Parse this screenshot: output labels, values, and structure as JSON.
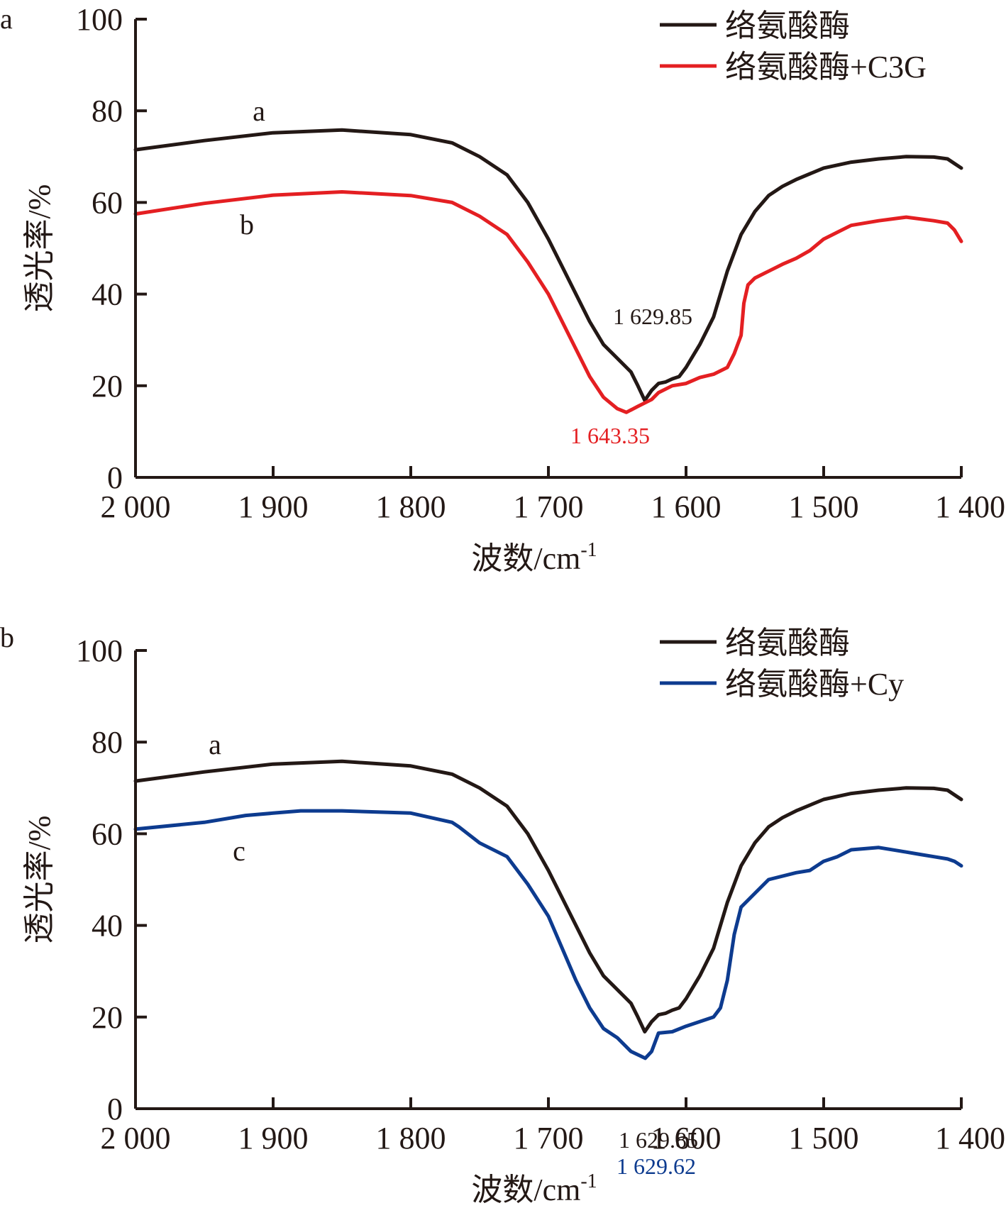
{
  "chart_data": [
    {
      "panel": "a",
      "type": "line",
      "xlabel": "波数/cm",
      "xlabel_sup": "-1",
      "ylabel": "透光率/%",
      "xlim": [
        2000,
        1400
      ],
      "ylim": [
        0,
        100
      ],
      "x_ticks": [
        2000,
        1900,
        1800,
        1700,
        1600,
        1500,
        1400
      ],
      "x_tick_labels": [
        "2 000",
        "1 900",
        "1 800",
        "1 700",
        "1 600",
        "1 500",
        "1 400"
      ],
      "y_ticks": [
        0,
        20,
        40,
        60,
        80,
        100
      ],
      "y_tick_labels": [
        "0",
        "20",
        "40",
        "60",
        "80",
        "100"
      ],
      "legend_position": "top-right",
      "series": [
        {
          "name": "络氨酸酶",
          "curve_label": "a",
          "color": "#231815",
          "points": [
            [
              2000,
              71.5
            ],
            [
              1950,
              73.5
            ],
            [
              1900,
              75.2
            ],
            [
              1850,
              75.8
            ],
            [
              1800,
              74.8
            ],
            [
              1770,
              73
            ],
            [
              1750,
              70
            ],
            [
              1730,
              66
            ],
            [
              1715,
              60
            ],
            [
              1700,
              52
            ],
            [
              1685,
              43
            ],
            [
              1670,
              34
            ],
            [
              1660,
              29
            ],
            [
              1650,
              26
            ],
            [
              1640,
              23
            ],
            [
              1635,
              20
            ],
            [
              1630,
              16.8
            ],
            [
              1625,
              19
            ],
            [
              1620,
              20.5
            ],
            [
              1615,
              20.8
            ],
            [
              1610,
              21.5
            ],
            [
              1605,
              22
            ],
            [
              1600,
              24
            ],
            [
              1595,
              26.5
            ],
            [
              1590,
              29
            ],
            [
              1580,
              35
            ],
            [
              1570,
              45
            ],
            [
              1560,
              53
            ],
            [
              1550,
              58
            ],
            [
              1540,
              61.5
            ],
            [
              1530,
              63.5
            ],
            [
              1520,
              65
            ],
            [
              1500,
              67.5
            ],
            [
              1480,
              68.8
            ],
            [
              1460,
              69.5
            ],
            [
              1440,
              70
            ],
            [
              1420,
              69.9
            ],
            [
              1410,
              69.5
            ],
            [
              1405,
              68.5
            ],
            [
              1400,
              67.5
            ]
          ],
          "peak_label": "1 629.85"
        },
        {
          "name": "络氨酸酶+C3G",
          "curve_label": "b",
          "color": "#e41f22",
          "points": [
            [
              2000,
              57.5
            ],
            [
              1950,
              59.8
            ],
            [
              1900,
              61.6
            ],
            [
              1850,
              62.3
            ],
            [
              1800,
              61.5
            ],
            [
              1770,
              60
            ],
            [
              1750,
              57
            ],
            [
              1730,
              53
            ],
            [
              1715,
              47
            ],
            [
              1700,
              40
            ],
            [
              1690,
              34
            ],
            [
              1680,
              28
            ],
            [
              1670,
              22
            ],
            [
              1660,
              17.5
            ],
            [
              1650,
              15
            ],
            [
              1643.35,
              14.2
            ],
            [
              1635,
              15.5
            ],
            [
              1625,
              17
            ],
            [
              1620,
              18.5
            ],
            [
              1610,
              20
            ],
            [
              1600,
              20.5
            ],
            [
              1590,
              21.8
            ],
            [
              1580,
              22.5
            ],
            [
              1570,
              24
            ],
            [
              1565,
              27
            ],
            [
              1560,
              31
            ],
            [
              1558,
              38
            ],
            [
              1555,
              42
            ],
            [
              1550,
              43.5
            ],
            [
              1540,
              45
            ],
            [
              1530,
              46.5
            ],
            [
              1520,
              47.8
            ],
            [
              1510,
              49.5
            ],
            [
              1500,
              52
            ],
            [
              1490,
              53.5
            ],
            [
              1480,
              55
            ],
            [
              1460,
              56
            ],
            [
              1440,
              56.8
            ],
            [
              1420,
              56
            ],
            [
              1410,
              55.5
            ],
            [
              1405,
              54
            ],
            [
              1400,
              51.5
            ]
          ],
          "peak_label": "1 643.35"
        }
      ]
    },
    {
      "panel": "b",
      "type": "line",
      "xlabel": "波数/cm",
      "xlabel_sup": "-1",
      "ylabel": "透光率/%",
      "xlim": [
        2000,
        1400
      ],
      "ylim": [
        0,
        100
      ],
      "x_ticks": [
        2000,
        1900,
        1800,
        1700,
        1600,
        1500,
        1400
      ],
      "x_tick_labels": [
        "2 000",
        "1 900",
        "1 800",
        "1 700",
        "1 600",
        "1 500",
        "1 400"
      ],
      "y_ticks": [
        0,
        20,
        40,
        60,
        80,
        100
      ],
      "y_tick_labels": [
        "0",
        "20",
        "40",
        "60",
        "80",
        "100"
      ],
      "legend_position": "top-right",
      "series": [
        {
          "name": "络氨酸酶",
          "curve_label": "a",
          "color": "#231815",
          "points": [
            [
              2000,
              71.5
            ],
            [
              1950,
              73.5
            ],
            [
              1900,
              75.2
            ],
            [
              1850,
              75.8
            ],
            [
              1800,
              74.8
            ],
            [
              1770,
              73
            ],
            [
              1750,
              70
            ],
            [
              1730,
              66
            ],
            [
              1715,
              60
            ],
            [
              1700,
              52
            ],
            [
              1685,
              43
            ],
            [
              1670,
              34
            ],
            [
              1660,
              29
            ],
            [
              1650,
              26
            ],
            [
              1640,
              23
            ],
            [
              1635,
              20
            ],
            [
              1630,
              16.8
            ],
            [
              1625,
              19
            ],
            [
              1620,
              20.5
            ],
            [
              1615,
              20.8
            ],
            [
              1610,
              21.5
            ],
            [
              1605,
              22
            ],
            [
              1600,
              24
            ],
            [
              1595,
              26.5
            ],
            [
              1590,
              29
            ],
            [
              1580,
              35
            ],
            [
              1570,
              45
            ],
            [
              1560,
              53
            ],
            [
              1550,
              58
            ],
            [
              1540,
              61.5
            ],
            [
              1530,
              63.5
            ],
            [
              1520,
              65
            ],
            [
              1500,
              67.5
            ],
            [
              1480,
              68.8
            ],
            [
              1460,
              69.5
            ],
            [
              1440,
              70
            ],
            [
              1420,
              69.9
            ],
            [
              1410,
              69.5
            ],
            [
              1405,
              68.5
            ],
            [
              1400,
              67.5
            ]
          ],
          "peak_label": "1 629.85"
        },
        {
          "name": "络氨酸酶+Cy",
          "curve_label": "c",
          "color": "#0d3b8f",
          "points": [
            [
              2000,
              61
            ],
            [
              1950,
              62.5
            ],
            [
              1920,
              64
            ],
            [
              1900,
              64.5
            ],
            [
              1880,
              65
            ],
            [
              1850,
              65
            ],
            [
              1800,
              64.5
            ],
            [
              1770,
              62.5
            ],
            [
              1765,
              61.5
            ],
            [
              1750,
              58
            ],
            [
              1730,
              55
            ],
            [
              1715,
              49
            ],
            [
              1700,
              42
            ],
            [
              1690,
              35
            ],
            [
              1680,
              28
            ],
            [
              1670,
              22
            ],
            [
              1660,
              17.5
            ],
            [
              1650,
              15.5
            ],
            [
              1640,
              12.5
            ],
            [
              1629.62,
              11
            ],
            [
              1625,
              12.5
            ],
            [
              1620,
              16.5
            ],
            [
              1610,
              16.8
            ],
            [
              1600,
              18
            ],
            [
              1590,
              19
            ],
            [
              1580,
              20
            ],
            [
              1575,
              22
            ],
            [
              1570,
              28
            ],
            [
              1565,
              38
            ],
            [
              1560,
              44
            ],
            [
              1550,
              47
            ],
            [
              1540,
              50
            ],
            [
              1520,
              51.5
            ],
            [
              1510,
              52
            ],
            [
              1500,
              54
            ],
            [
              1490,
              55
            ],
            [
              1480,
              56.5
            ],
            [
              1460,
              57
            ],
            [
              1440,
              56
            ],
            [
              1430,
              55.5
            ],
            [
              1420,
              55
            ],
            [
              1410,
              54.5
            ],
            [
              1405,
              54
            ],
            [
              1400,
              53
            ]
          ],
          "peak_label": "1 629.62"
        }
      ]
    }
  ]
}
